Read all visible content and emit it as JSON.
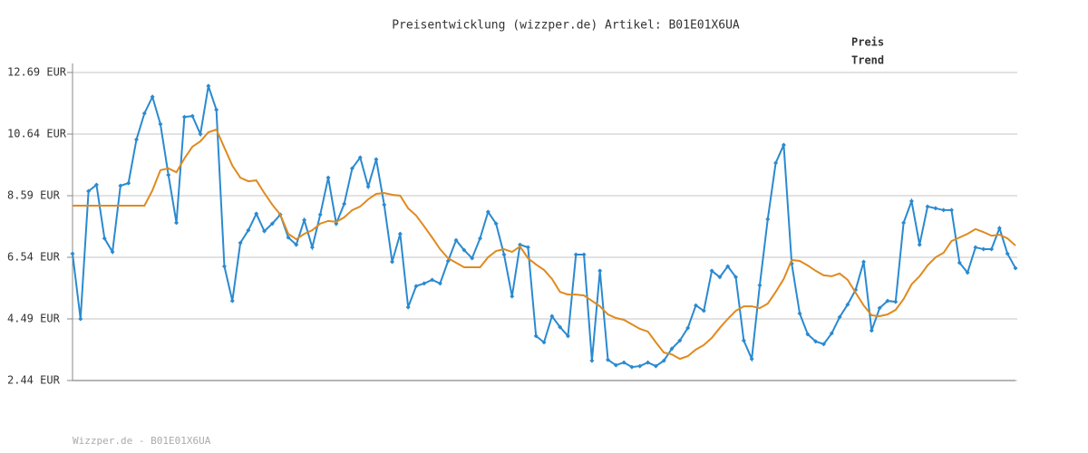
{
  "chart_data": {
    "type": "line",
    "title": "Preisentwicklung (wizzper.de) Artikel: B01E01X6UA",
    "footer": "Wizzper.de - B01E01X6UA",
    "ylim": [
      2.44,
      12.69
    ],
    "yticks": [
      {
        "value": 2.44,
        "label": "2.44 EUR"
      },
      {
        "value": 4.49,
        "label": "4.49 EUR"
      },
      {
        "value": 6.54,
        "label": "6.54 EUR"
      },
      {
        "value": 8.59,
        "label": "8.59 EUR"
      },
      {
        "value": 10.64,
        "label": "10.64 EUR"
      },
      {
        "value": 12.69,
        "label": "12.69 EUR"
      }
    ],
    "grid": true,
    "legend": "top-right",
    "series": [
      {
        "name": "Preis",
        "color": "#2a8ad0",
        "markers": true,
        "values": [
          6.66,
          4.49,
          8.74,
          8.95,
          7.17,
          6.72,
          8.92,
          9.01,
          10.46,
          11.33,
          11.88,
          10.97,
          9.28,
          7.69,
          11.21,
          11.24,
          10.64,
          12.24,
          11.45,
          6.24,
          5.09,
          7.02,
          7.44,
          7.99,
          7.41,
          7.66,
          7.96,
          7.2,
          6.96,
          7.78,
          6.87,
          7.96,
          9.19,
          7.66,
          8.32,
          9.5,
          9.86,
          8.89,
          9.8,
          8.29,
          6.39,
          7.32,
          4.88,
          5.58,
          5.67,
          5.79,
          5.67,
          6.42,
          7.11,
          6.78,
          6.51,
          7.17,
          8.05,
          7.66,
          6.63,
          5.24,
          6.96,
          6.87,
          3.92,
          3.71,
          4.58,
          4.22,
          3.92,
          6.63,
          6.63,
          3.1,
          6.09,
          3.13,
          2.95,
          3.04,
          2.89,
          2.92,
          3.04,
          2.92,
          3.1,
          3.5,
          3.77,
          4.19,
          4.94,
          4.76,
          6.09,
          5.88,
          6.24,
          5.88,
          3.77,
          3.16,
          5.61,
          7.81,
          9.68,
          10.28,
          6.33,
          4.67,
          3.98,
          3.74,
          3.65,
          4.01,
          4.55,
          4.97,
          5.46,
          6.39,
          4.1,
          4.85,
          5.09,
          5.06,
          7.69,
          8.41,
          6.96,
          8.23,
          8.17,
          8.11,
          8.11,
          6.36,
          6.03,
          6.87,
          6.81,
          6.81,
          7.51,
          6.66,
          6.18
        ]
      },
      {
        "name": "Trend",
        "color": "#e08a1e",
        "markers": false,
        "values": [
          8.26,
          8.26,
          8.26,
          8.26,
          8.26,
          8.26,
          8.26,
          8.26,
          8.26,
          8.26,
          8.77,
          9.44,
          9.5,
          9.37,
          9.83,
          10.22,
          10.4,
          10.7,
          10.79,
          10.19,
          9.59,
          9.19,
          9.07,
          9.1,
          8.68,
          8.29,
          7.96,
          7.32,
          7.14,
          7.32,
          7.44,
          7.66,
          7.75,
          7.72,
          7.87,
          8.11,
          8.23,
          8.47,
          8.65,
          8.68,
          8.62,
          8.59,
          8.17,
          7.93,
          7.57,
          7.2,
          6.81,
          6.51,
          6.36,
          6.21,
          6.21,
          6.21,
          6.54,
          6.75,
          6.81,
          6.72,
          6.9,
          6.51,
          6.3,
          6.12,
          5.82,
          5.39,
          5.3,
          5.3,
          5.27,
          5.09,
          4.91,
          4.64,
          4.52,
          4.46,
          4.31,
          4.16,
          4.07,
          3.71,
          3.37,
          3.31,
          3.16,
          3.25,
          3.47,
          3.62,
          3.86,
          4.19,
          4.49,
          4.76,
          4.91,
          4.91,
          4.85,
          5.0,
          5.39,
          5.82,
          6.45,
          6.42,
          6.27,
          6.09,
          5.94,
          5.91,
          6.0,
          5.79,
          5.36,
          4.94,
          4.61,
          4.58,
          4.64,
          4.79,
          5.15,
          5.64,
          5.91,
          6.27,
          6.54,
          6.69,
          7.08,
          7.2,
          7.32,
          7.48,
          7.38,
          7.26,
          7.29,
          7.17,
          6.93
        ]
      }
    ]
  }
}
